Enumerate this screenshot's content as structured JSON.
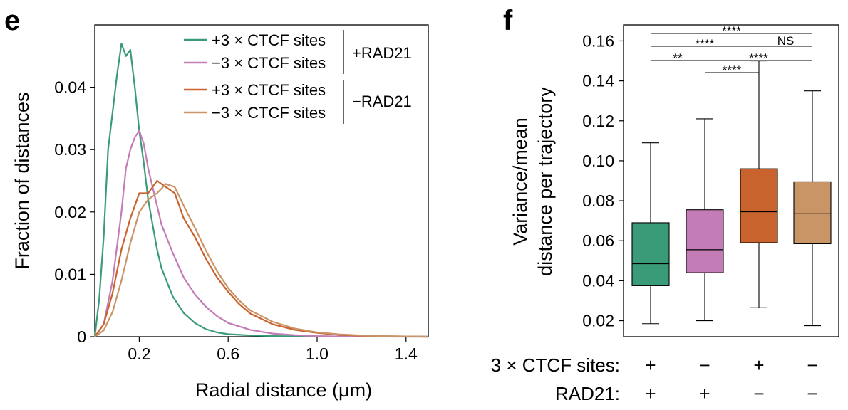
{
  "panels": {
    "left_label": "e",
    "right_label": "f"
  },
  "colors": {
    "plus_rad_plus": "#3a9b78",
    "minus_rad_plus": "#c47cb6",
    "plus_rad_minus": "#c8632e",
    "minus_rad_minus": "#c99466"
  },
  "chart_data": [
    {
      "type": "line",
      "xlabel": "Radial distance (μm)",
      "ylabel": "Fraction of distances",
      "xlim": [
        0.0,
        1.5
      ],
      "ylim": [
        0,
        0.05
      ],
      "xticks": [
        0.2,
        0.6,
        1.0,
        1.4
      ],
      "xtick_labels": [
        "0.2",
        "0.6",
        "1.0",
        "1.4"
      ],
      "yticks": [
        0,
        0.01,
        0.02,
        0.03,
        0.04
      ],
      "ytick_labels": [
        "0",
        "0.01",
        "0.02",
        "0.03",
        "0.04"
      ],
      "legend": {
        "placement": "top-right",
        "groups": [
          {
            "label": "+RAD21",
            "entries": [
              "+3 × CTCF sites",
              "−3 × CTCF sites"
            ]
          },
          {
            "label": "−RAD21",
            "entries": [
              "+3 × CTCF sites",
              "−3 × CTCF sites"
            ]
          }
        ]
      },
      "series": [
        {
          "name": "+3 × CTCF sites",
          "group": "+RAD21",
          "color": "#3a9b78",
          "x": [
            0.0,
            0.02,
            0.04,
            0.06,
            0.08,
            0.1,
            0.12,
            0.14,
            0.16,
            0.18,
            0.2,
            0.22,
            0.24,
            0.26,
            0.28,
            0.3,
            0.35,
            0.4,
            0.45,
            0.5,
            0.55,
            0.6,
            0.7,
            0.8,
            1.0,
            1.2,
            1.5
          ],
          "y": [
            0.0,
            0.006,
            0.016,
            0.03,
            0.036,
            0.042,
            0.047,
            0.045,
            0.046,
            0.04,
            0.033,
            0.028,
            0.022,
            0.018,
            0.014,
            0.011,
            0.0065,
            0.0038,
            0.0022,
            0.0012,
            0.0007,
            0.0004,
            0.0002,
            0.0001,
            3e-05,
            1e-05,
            0.0
          ]
        },
        {
          "name": "−3 × CTCF sites",
          "group": "+RAD21",
          "color": "#c47cb6",
          "x": [
            0.0,
            0.04,
            0.08,
            0.12,
            0.14,
            0.16,
            0.18,
            0.2,
            0.22,
            0.24,
            0.26,
            0.28,
            0.3,
            0.35,
            0.4,
            0.45,
            0.5,
            0.55,
            0.6,
            0.7,
            0.8,
            0.9,
            1.0,
            1.1,
            1.2,
            1.5
          ],
          "y": [
            0.0,
            0.002,
            0.009,
            0.02,
            0.027,
            0.03,
            0.032,
            0.033,
            0.031,
            0.027,
            0.024,
            0.021,
            0.018,
            0.0135,
            0.0095,
            0.0068,
            0.0048,
            0.0033,
            0.0022,
            0.0011,
            0.0005,
            0.00025,
            0.0001,
            4e-05,
            2e-05,
            0.0
          ]
        },
        {
          "name": "+3 × CTCF sites",
          "group": "−RAD21",
          "color": "#c8632e",
          "x": [
            0.0,
            0.04,
            0.08,
            0.12,
            0.16,
            0.2,
            0.24,
            0.28,
            0.3,
            0.32,
            0.34,
            0.36,
            0.4,
            0.45,
            0.5,
            0.55,
            0.6,
            0.65,
            0.7,
            0.8,
            0.9,
            1.0,
            1.1,
            1.2,
            1.3,
            1.4,
            1.5
          ],
          "y": [
            0.0,
            0.002,
            0.007,
            0.014,
            0.019,
            0.023,
            0.023,
            0.025,
            0.0245,
            0.024,
            0.0235,
            0.023,
            0.019,
            0.016,
            0.0125,
            0.0095,
            0.0072,
            0.0052,
            0.0037,
            0.002,
            0.0011,
            0.0006,
            0.0003,
            0.00015,
            8e-05,
            4e-05,
            0.0
          ]
        },
        {
          "name": "−3 × CTCF sites",
          "group": "−RAD21",
          "color": "#c99466",
          "x": [
            0.0,
            0.04,
            0.08,
            0.12,
            0.16,
            0.2,
            0.24,
            0.28,
            0.32,
            0.36,
            0.4,
            0.45,
            0.5,
            0.55,
            0.6,
            0.65,
            0.7,
            0.8,
            0.9,
            1.0,
            1.1,
            1.2,
            1.3,
            1.4,
            1.5
          ],
          "y": [
            0.0,
            0.001,
            0.004,
            0.009,
            0.015,
            0.02,
            0.022,
            0.023,
            0.0245,
            0.024,
            0.021,
            0.0175,
            0.0138,
            0.0105,
            0.0078,
            0.0058,
            0.0042,
            0.0024,
            0.0013,
            0.0007,
            0.00038,
            0.0002,
            0.0001,
            5e-05,
            0.0
          ]
        }
      ]
    },
    {
      "type": "box",
      "ylabel": "Variance/mean distance per trajectory",
      "ylabel_lines": [
        "Variance/mean",
        "distance per trajectory"
      ],
      "ylim": [
        0.012,
        0.168
      ],
      "yticks": [
        0.02,
        0.04,
        0.06,
        0.08,
        0.1,
        0.12,
        0.14,
        0.16
      ],
      "ytick_labels": [
        "0.02",
        "0.04",
        "0.06",
        "0.08",
        "0.10",
        "0.12",
        "0.14",
        "0.16"
      ],
      "row_labels": [
        "3 × CTCF sites:",
        "RAD21:"
      ],
      "boxes": [
        {
          "ctcf": "+",
          "rad21": "+",
          "color": "#3a9b78",
          "whisker_low": 0.0185,
          "q1": 0.0375,
          "median": 0.0485,
          "q3": 0.069,
          "whisker_high": 0.109
        },
        {
          "ctcf": "−",
          "rad21": "+",
          "color": "#c47cb6",
          "whisker_low": 0.02,
          "q1": 0.044,
          "median": 0.0555,
          "q3": 0.0755,
          "whisker_high": 0.121
        },
        {
          "ctcf": "+",
          "rad21": "−",
          "color": "#c8632e",
          "whisker_low": 0.0265,
          "q1": 0.059,
          "median": 0.0745,
          "q3": 0.096,
          "whisker_high": 0.15
        },
        {
          "ctcf": "−",
          "rad21": "−",
          "color": "#c99466",
          "whisker_low": 0.0175,
          "q1": 0.0585,
          "median": 0.0735,
          "q3": 0.0895,
          "whisker_high": 0.135
        }
      ],
      "significance": [
        {
          "from": 1,
          "to": 4,
          "label": "****"
        },
        {
          "from": 1,
          "to": 3,
          "label": "****"
        },
        {
          "from": 3,
          "to": 4,
          "label": "NS"
        },
        {
          "from": 1,
          "to": 2,
          "label": "**"
        },
        {
          "from": 2,
          "to": 4,
          "label": "****"
        },
        {
          "from": 2,
          "to": 3,
          "label": "****"
        }
      ]
    }
  ]
}
